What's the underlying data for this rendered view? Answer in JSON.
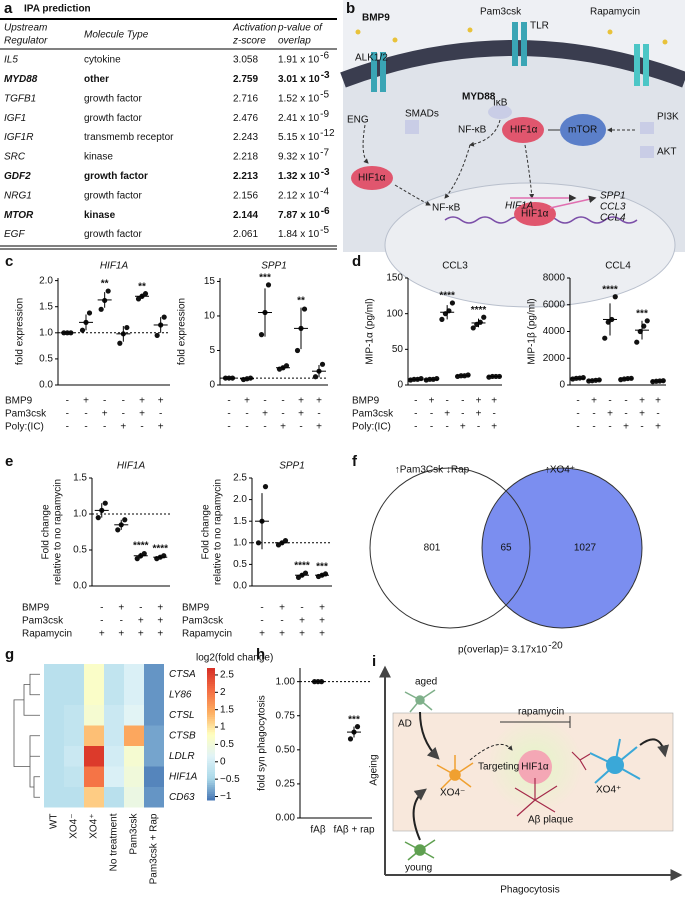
{
  "panel_a": {
    "letter": "a",
    "title": "IPA prediction",
    "columns": [
      [
        "Upstream",
        "Regulator"
      ],
      [
        "Molecule Type"
      ],
      [
        "Activation",
        "z-score"
      ],
      [
        "p-value of",
        "overlap"
      ]
    ],
    "rows": [
      {
        "regulator": "IL5",
        "type": "cytokine",
        "z": "3.058",
        "p": "1.91 x 10",
        "p_exp": "-6",
        "bold": false
      },
      {
        "regulator": "MYD88",
        "type": "other",
        "z": "2.759",
        "p": "3.01 x 10",
        "p_exp": "-3",
        "bold": true
      },
      {
        "regulator": "TGFB1",
        "type": "growth factor",
        "z": "2.716",
        "p": "1.52 x 10",
        "p_exp": "-5",
        "bold": false
      },
      {
        "regulator": "IGF1",
        "type": "growth factor",
        "z": "2.476",
        "p": "2.41 x 10",
        "p_exp": "-9",
        "bold": false
      },
      {
        "regulator": "IGF1R",
        "type": "transmemb receptor",
        "z": "2.243",
        "p": "5.15 x 10",
        "p_exp": "-12",
        "bold": false
      },
      {
        "regulator": "SRC",
        "type": "kinase",
        "z": "2.218",
        "p": "9.32 x 10",
        "p_exp": "-7",
        "bold": false
      },
      {
        "regulator": "GDF2",
        "type": "growth factor",
        "z": "2.213",
        "p": "1.32 x 10",
        "p_exp": "-3",
        "bold": true
      },
      {
        "regulator": "NRG1",
        "type": "growth factor",
        "z": "2.156",
        "p": "2.12 x 10",
        "p_exp": "-4",
        "bold": false
      },
      {
        "regulator": "MTOR",
        "type": "kinase",
        "z": "2.144",
        "p": "7.87 x 10",
        "p_exp": "-6",
        "bold": true
      },
      {
        "regulator": "EGF",
        "type": "growth factor",
        "z": "2.061",
        "p": "1.84 x 10",
        "p_exp": "-5",
        "bold": false
      }
    ]
  },
  "panel_b": {
    "letter": "b",
    "labels": [
      "BMP9",
      "Pam3csk",
      "TLR",
      "Rapamycin",
      "ALK1/2",
      "MYD88",
      "ENG",
      "SMADs",
      "IκB",
      "NF-κB",
      "HIF1α",
      "mTOR",
      "PI3K",
      "AKT",
      "HIF1α",
      "NF-κB",
      "HIF1A",
      "HIF1α",
      "SPP1",
      "CCL3",
      "CCL4"
    ]
  },
  "panel_c": {
    "letter": "c",
    "conditions": {
      "names": [
        "BMP9",
        "Pam3csk",
        "Poly:(IC)"
      ],
      "signs": [
        [
          "-",
          "+",
          "-",
          "-",
          "+",
          "+"
        ],
        [
          "-",
          "-",
          "+",
          "-",
          "+",
          "-"
        ],
        [
          "-",
          "-",
          "-",
          "+",
          "-",
          "+"
        ]
      ]
    },
    "charts": [
      {
        "type": "dot",
        "title": "HIF1A",
        "italic_title": true,
        "ylabel": [
          "fold expression"
        ],
        "ylim": [
          0,
          2.05
        ],
        "yticks": [
          {
            "value": 0,
            "label": "0.0"
          },
          0.5,
          {
            "value": 1,
            "label": "1.0"
          },
          1.5,
          {
            "value": 2,
            "label": "2.0"
          }
        ],
        "reference": 1,
        "groups": [
          {
            "points": [
              1,
              1,
              1
            ],
            "mean": 1,
            "err": 0
          },
          {
            "points": [
              1.05,
              1.2,
              1.38
            ],
            "mean": 1.2,
            "err": 0.15
          },
          {
            "points": [
              1.45,
              1.62,
              1.8
            ],
            "mean": 1.63,
            "err": 0.15
          },
          {
            "points": [
              0.8,
              0.98,
              1.1
            ],
            "mean": 0.98,
            "err": 0.15
          },
          {
            "points": [
              1.65,
              1.7,
              1.75
            ],
            "mean": 1.7,
            "err": 0.05
          },
          {
            "points": [
              0.95,
              1.15,
              1.3
            ],
            "mean": 1.15,
            "err": 0.15
          }
        ],
        "annotations": [
          null,
          null,
          "**",
          null,
          "**",
          null
        ]
      },
      {
        "type": "dot",
        "title": "SPP1",
        "italic_title": true,
        "ylabel": [
          "fold expression"
        ],
        "ylim": [
          0,
          15.5
        ],
        "yticks": [
          0,
          5,
          10,
          15
        ],
        "reference": 1,
        "groups": [
          {
            "points": [
              1,
              1,
              1
            ],
            "mean": 1,
            "err": 0
          },
          {
            "points": [
              0.8,
              0.9,
              1.0
            ],
            "mean": 0.9,
            "err": 0.1
          },
          {
            "points": [
              7.3,
              10.5,
              14.5
            ],
            "mean": 10.5,
            "err": 3.5
          },
          {
            "points": [
              2.3,
              2.5,
              2.8
            ],
            "mean": 2.5,
            "err": 0.25
          },
          {
            "points": [
              5,
              8.2,
              11
            ],
            "mean": 8.2,
            "err": 3
          },
          {
            "points": [
              1.2,
              2,
              3
            ],
            "mean": 2,
            "err": 0.9
          }
        ],
        "annotations": [
          null,
          null,
          "***",
          null,
          "**",
          null
        ]
      }
    ]
  },
  "panel_d": {
    "letter": "d",
    "conditions": {
      "names": [
        "BMP9",
        "Pam3csk",
        "Poly:(IC)"
      ],
      "signs": [
        [
          "-",
          "+",
          "-",
          "-",
          "+",
          "+"
        ],
        [
          "-",
          "-",
          "+",
          "-",
          "+",
          "-"
        ],
        [
          "-",
          "-",
          "-",
          "+",
          "-",
          "+"
        ]
      ]
    },
    "charts": [
      {
        "type": "dot",
        "title": "CCL3",
        "italic_title": false,
        "ylabel": [
          "MIP-1α (pg/ml)"
        ],
        "ylim": [
          0,
          150
        ],
        "yticks": [
          0,
          50,
          100,
          150
        ],
        "groups": [
          {
            "points": [
              7,
              8,
              8,
              9
            ],
            "mean": 8,
            "err": 0.5
          },
          {
            "points": [
              7,
              8,
              8,
              9
            ],
            "mean": 8,
            "err": 1
          },
          {
            "points": [
              92,
              100,
              104,
              115
            ],
            "mean": 102,
            "err": 10
          },
          {
            "points": [
              12,
              13,
              13,
              14
            ],
            "mean": 13,
            "err": 1
          },
          {
            "points": [
              80,
              85,
              88,
              95
            ],
            "mean": 87,
            "err": 6
          },
          {
            "points": [
              11,
              12,
              12,
              12
            ],
            "mean": 12,
            "err": 0.5
          }
        ],
        "annotations": [
          null,
          null,
          "****",
          null,
          "****",
          null
        ]
      },
      {
        "type": "dot",
        "title": "CCL4",
        "italic_title": false,
        "ylabel": [
          "MIP-1β (pg/ml)"
        ],
        "ylim": [
          0,
          8000
        ],
        "yticks": [
          0,
          2000,
          4000,
          6000,
          8000
        ],
        "groups": [
          {
            "points": [
              450,
              500,
              520,
              550
            ],
            "mean": 500,
            "err": 50
          },
          {
            "points": [
              300,
              320,
              350,
              380
            ],
            "mean": 340,
            "err": 40
          },
          {
            "points": [
              3500,
              4700,
              4900,
              6600
            ],
            "mean": 4900,
            "err": 1200
          },
          {
            "points": [
              400,
              450,
              480,
              500
            ],
            "mean": 460,
            "err": 40
          },
          {
            "points": [
              3200,
              4000,
              4400,
              4800
            ],
            "mean": 4100,
            "err": 700
          },
          {
            "points": [
              250,
              280,
              300,
              320
            ],
            "mean": 290,
            "err": 30
          }
        ],
        "annotations": [
          null,
          null,
          "****",
          null,
          "***",
          null
        ]
      }
    ]
  },
  "panel_e": {
    "letter": "e",
    "charts": [
      {
        "type": "dot",
        "title": "HIF1A",
        "italic_title": true,
        "ylabel": [
          "Fold change",
          "relative to no rapamycin"
        ],
        "ylim": [
          0,
          1.5
        ],
        "yticks": [
          {
            "value": 0,
            "label": "0.0"
          },
          0.5,
          {
            "value": 1,
            "label": "1.0"
          },
          1.5
        ],
        "reference": 1,
        "groups": [
          {
            "points": [
              0.95,
              1.05,
              1.15
            ],
            "mean": 1.05,
            "err": 0.1
          },
          {
            "points": [
              0.78,
              0.85,
              0.92
            ],
            "mean": 0.85,
            "err": 0.07
          },
          {
            "points": [
              0.38,
              0.42,
              0.45
            ],
            "mean": 0.42,
            "err": 0.04
          },
          {
            "points": [
              0.38,
              0.4,
              0.42
            ],
            "mean": 0.4,
            "err": 0.02
          }
        ],
        "annotations": [
          null,
          null,
          "****",
          "****"
        ],
        "conditions": {
          "names": [
            "BMP9",
            "Pam3csk",
            "Rapamycin"
          ],
          "signs": [
            [
              "-",
              "+",
              "-",
              "+"
            ],
            [
              "-",
              "-",
              "+",
              "+"
            ],
            [
              "+",
              "+",
              "+",
              "+"
            ]
          ]
        }
      },
      {
        "type": "dot",
        "title": "SPP1",
        "italic_title": true,
        "ylabel": [
          "Fold change",
          "relative to no rapamycin"
        ],
        "ylim": [
          0,
          2.5
        ],
        "yticks": [
          {
            "value": 0,
            "label": "0.0"
          },
          0.5,
          {
            "value": 1,
            "label": "1.0"
          },
          1.5,
          {
            "value": 2,
            "label": "2.0"
          },
          2.5
        ],
        "reference": 1,
        "groups": [
          {
            "points": [
              1.0,
              1.5,
              2.3
            ],
            "mean": 1.5,
            "err": 0.65
          },
          {
            "points": [
              0.95,
              1.0,
              1.05
            ],
            "mean": 1,
            "err": 0.05
          },
          {
            "points": [
              0.2,
              0.25,
              0.3
            ],
            "mean": 0.25,
            "err": 0.05
          },
          {
            "points": [
              0.22,
              0.25,
              0.28
            ],
            "mean": 0.25,
            "err": 0.03
          }
        ],
        "annotations": [
          null,
          null,
          "****",
          "***"
        ],
        "conditions": {
          "names": [
            "BMP9",
            "Pam3csk",
            "Rapamycin"
          ],
          "signs": [
            [
              "-",
              "+",
              "-",
              "+"
            ],
            [
              "-",
              "-",
              "+",
              "+"
            ],
            [
              "+",
              "+",
              "+",
              "+"
            ]
          ]
        }
      }
    ]
  },
  "panel_f": {
    "letter": "f",
    "set_a": "↑Pam3Csk ↓Rap",
    "set_b": "↑XO4⁺",
    "only_a": "801",
    "both": "65",
    "only_b": "1027",
    "p_text": "p(overlap)= 3.17x10",
    "p_exp": "-20",
    "color_b": "#7b8ef0"
  },
  "panel_g": {
    "letter": "g",
    "type": "heatmap",
    "colorbar_title": "log2(fold change)",
    "rows": [
      "CTSA",
      "LY86",
      "CTSL",
      "CTSB",
      "LDLR",
      "HIF1A",
      "CD63"
    ],
    "columns": [
      "WT",
      "XO4⁻",
      "XO4⁺",
      "No treatment",
      "Pam3csk",
      "Pam3csk + Rap"
    ],
    "values": [
      [
        -0.3,
        -0.3,
        0.7,
        -0.2,
        0.1,
        -0.9
      ],
      [
        -0.3,
        -0.3,
        0.7,
        -0.2,
        0.1,
        -0.9
      ],
      [
        -0.3,
        -0.2,
        0.6,
        -0.1,
        0.2,
        -0.9
      ],
      [
        -0.3,
        -0.2,
        1.3,
        -0.1,
        1.5,
        -0.8
      ],
      [
        -0.3,
        -0.1,
        2.6,
        0,
        0.6,
        -0.8
      ],
      [
        -0.3,
        -0.2,
        2.0,
        0.1,
        0.5,
        -1.0
      ],
      [
        -0.3,
        -0.3,
        1.2,
        -0.3,
        0.4,
        -0.9
      ]
    ],
    "clim": [
      -1.1,
      2.7
    ],
    "cticks": [
      {
        "value": -1,
        "label": "−1"
      },
      {
        "value": -0.5,
        "label": "−0.5"
      },
      0,
      0.5,
      1,
      1.5,
      2,
      2.5
    ],
    "colormap": [
      "#4575b4",
      "#abd9e9",
      "#e0f3f8",
      "#ffffbf",
      "#fdae61",
      "#f46d43",
      "#d73027"
    ]
  },
  "panel_h": {
    "letter": "h",
    "chart": {
      "type": "dot",
      "ylabel": [
        "fold syn phagocytosis"
      ],
      "ylim": [
        0,
        1.1
      ],
      "yticks": [
        {
          "value": 0,
          "label": "0.00"
        },
        0.25,
        {
          "value": 0.5,
          "label": "0.50"
        },
        0.75,
        {
          "value": 1,
          "label": "1.00"
        }
      ],
      "reference": 1,
      "categories": [
        "fAβ",
        "fAβ + rap"
      ],
      "groups": [
        {
          "points": [
            1,
            1,
            1
          ],
          "mean": 1,
          "err": 0
        },
        {
          "points": [
            0.58,
            0.63,
            0.67
          ],
          "mean": 0.63,
          "err": 0.04
        }
      ],
      "annotations": [
        null,
        "***"
      ]
    }
  },
  "panel_i": {
    "letter": "i",
    "labels": {
      "aged": "aged",
      "ad": "AD",
      "rapamycin": "rapamycin",
      "targeting": "Targeting",
      "hif": "HIF1α",
      "xo4_neg": "XO4⁻",
      "xo4_pos": "XO4⁺",
      "plaque": "Aβ plaque",
      "young": "young",
      "y_axis": "Ageing",
      "x_axis": "Phagocytosis"
    }
  }
}
